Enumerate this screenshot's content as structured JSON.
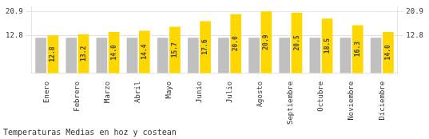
{
  "chart_data": {
    "type": "bar",
    "title": "Temperaturas Medias en hoz y costean",
    "categories": [
      "Enero",
      "Febrero",
      "Marzo",
      "Abril",
      "Mayo",
      "Junio",
      "Julio",
      "Agosto",
      "Septiembre",
      "Octubre",
      "Noviembre",
      "Diciembre"
    ],
    "series": [
      {
        "color": "#C0C0C0",
        "values": [
          12.0,
          12.0,
          12.0,
          12.0,
          12.0,
          12.0,
          12.0,
          12.0,
          12.0,
          12.0,
          12.0,
          12.0
        ]
      },
      {
        "color": "#FFD700",
        "values": [
          12.8,
          13.2,
          14.0,
          14.4,
          15.7,
          17.6,
          20.0,
          20.9,
          20.5,
          18.5,
          16.3,
          14.0
        ],
        "data_labels": true,
        "value_labels": [
          "12.8",
          "13.2",
          "14.0",
          "14.4",
          "15.7",
          "17.6",
          "20.0",
          "20.9",
          "20.5",
          "18.5",
          "16.3",
          "14.0"
        ]
      }
    ],
    "ylim": [
      0,
      22.5
    ],
    "yticks": [
      12.8,
      20.9
    ],
    "y2lim": [
      0,
      22.5
    ],
    "y2ticks": [
      12.8,
      20.9
    ],
    "grid": true
  }
}
